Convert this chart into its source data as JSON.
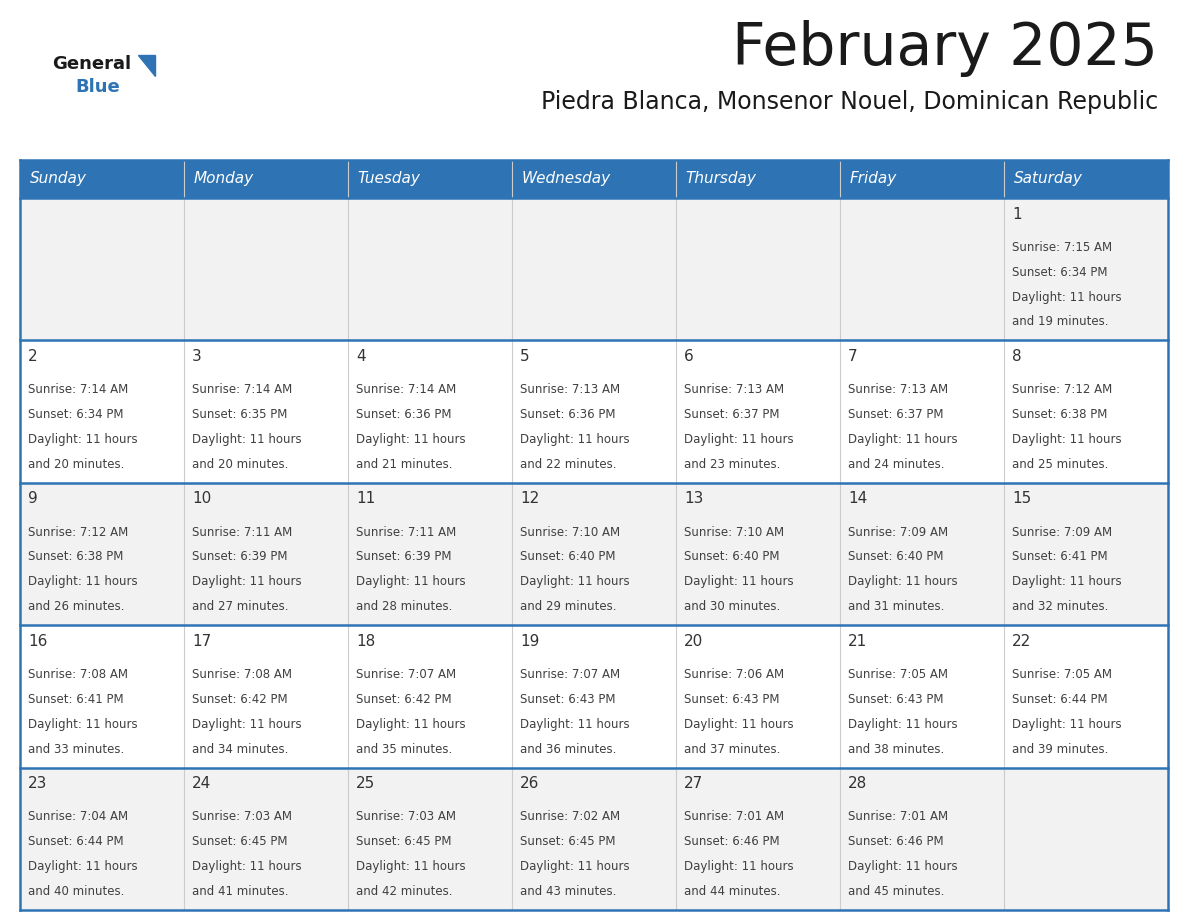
{
  "title": "February 2025",
  "subtitle": "Piedra Blanca, Monsenor Nouel, Dominican Republic",
  "header_bg": "#2E74B5",
  "header_text": "#FFFFFF",
  "row_bg_light": "#F2F2F2",
  "row_bg_white": "#FFFFFF",
  "cell_text": "#404040",
  "day_number_color": "#333333",
  "separator_color": "#2E74B5",
  "weekdays": [
    "Sunday",
    "Monday",
    "Tuesday",
    "Wednesday",
    "Thursday",
    "Friday",
    "Saturday"
  ],
  "background": "#FFFFFF",
  "logo_triangle_color": "#2E74B5",
  "days": [
    {
      "day": 1,
      "col": 6,
      "row": 0,
      "sunrise": "7:15 AM",
      "sunset": "6:34 PM",
      "daylight_mins": "19"
    },
    {
      "day": 2,
      "col": 0,
      "row": 1,
      "sunrise": "7:14 AM",
      "sunset": "6:34 PM",
      "daylight_mins": "20"
    },
    {
      "day": 3,
      "col": 1,
      "row": 1,
      "sunrise": "7:14 AM",
      "sunset": "6:35 PM",
      "daylight_mins": "20"
    },
    {
      "day": 4,
      "col": 2,
      "row": 1,
      "sunrise": "7:14 AM",
      "sunset": "6:36 PM",
      "daylight_mins": "21"
    },
    {
      "day": 5,
      "col": 3,
      "row": 1,
      "sunrise": "7:13 AM",
      "sunset": "6:36 PM",
      "daylight_mins": "22"
    },
    {
      "day": 6,
      "col": 4,
      "row": 1,
      "sunrise": "7:13 AM",
      "sunset": "6:37 PM",
      "daylight_mins": "23"
    },
    {
      "day": 7,
      "col": 5,
      "row": 1,
      "sunrise": "7:13 AM",
      "sunset": "6:37 PM",
      "daylight_mins": "24"
    },
    {
      "day": 8,
      "col": 6,
      "row": 1,
      "sunrise": "7:12 AM",
      "sunset": "6:38 PM",
      "daylight_mins": "25"
    },
    {
      "day": 9,
      "col": 0,
      "row": 2,
      "sunrise": "7:12 AM",
      "sunset": "6:38 PM",
      "daylight_mins": "26"
    },
    {
      "day": 10,
      "col": 1,
      "row": 2,
      "sunrise": "7:11 AM",
      "sunset": "6:39 PM",
      "daylight_mins": "27"
    },
    {
      "day": 11,
      "col": 2,
      "row": 2,
      "sunrise": "7:11 AM",
      "sunset": "6:39 PM",
      "daylight_mins": "28"
    },
    {
      "day": 12,
      "col": 3,
      "row": 2,
      "sunrise": "7:10 AM",
      "sunset": "6:40 PM",
      "daylight_mins": "29"
    },
    {
      "day": 13,
      "col": 4,
      "row": 2,
      "sunrise": "7:10 AM",
      "sunset": "6:40 PM",
      "daylight_mins": "30"
    },
    {
      "day": 14,
      "col": 5,
      "row": 2,
      "sunrise": "7:09 AM",
      "sunset": "6:40 PM",
      "daylight_mins": "31"
    },
    {
      "day": 15,
      "col": 6,
      "row": 2,
      "sunrise": "7:09 AM",
      "sunset": "6:41 PM",
      "daylight_mins": "32"
    },
    {
      "day": 16,
      "col": 0,
      "row": 3,
      "sunrise": "7:08 AM",
      "sunset": "6:41 PM",
      "daylight_mins": "33"
    },
    {
      "day": 17,
      "col": 1,
      "row": 3,
      "sunrise": "7:08 AM",
      "sunset": "6:42 PM",
      "daylight_mins": "34"
    },
    {
      "day": 18,
      "col": 2,
      "row": 3,
      "sunrise": "7:07 AM",
      "sunset": "6:42 PM",
      "daylight_mins": "35"
    },
    {
      "day": 19,
      "col": 3,
      "row": 3,
      "sunrise": "7:07 AM",
      "sunset": "6:43 PM",
      "daylight_mins": "36"
    },
    {
      "day": 20,
      "col": 4,
      "row": 3,
      "sunrise": "7:06 AM",
      "sunset": "6:43 PM",
      "daylight_mins": "37"
    },
    {
      "day": 21,
      "col": 5,
      "row": 3,
      "sunrise": "7:05 AM",
      "sunset": "6:43 PM",
      "daylight_mins": "38"
    },
    {
      "day": 22,
      "col": 6,
      "row": 3,
      "sunrise": "7:05 AM",
      "sunset": "6:44 PM",
      "daylight_mins": "39"
    },
    {
      "day": 23,
      "col": 0,
      "row": 4,
      "sunrise": "7:04 AM",
      "sunset": "6:44 PM",
      "daylight_mins": "40"
    },
    {
      "day": 24,
      "col": 1,
      "row": 4,
      "sunrise": "7:03 AM",
      "sunset": "6:45 PM",
      "daylight_mins": "41"
    },
    {
      "day": 25,
      "col": 2,
      "row": 4,
      "sunrise": "7:03 AM",
      "sunset": "6:45 PM",
      "daylight_mins": "42"
    },
    {
      "day": 26,
      "col": 3,
      "row": 4,
      "sunrise": "7:02 AM",
      "sunset": "6:45 PM",
      "daylight_mins": "43"
    },
    {
      "day": 27,
      "col": 4,
      "row": 4,
      "sunrise": "7:01 AM",
      "sunset": "6:46 PM",
      "daylight_mins": "44"
    },
    {
      "day": 28,
      "col": 5,
      "row": 4,
      "sunrise": "7:01 AM",
      "sunset": "6:46 PM",
      "daylight_mins": "45"
    }
  ]
}
